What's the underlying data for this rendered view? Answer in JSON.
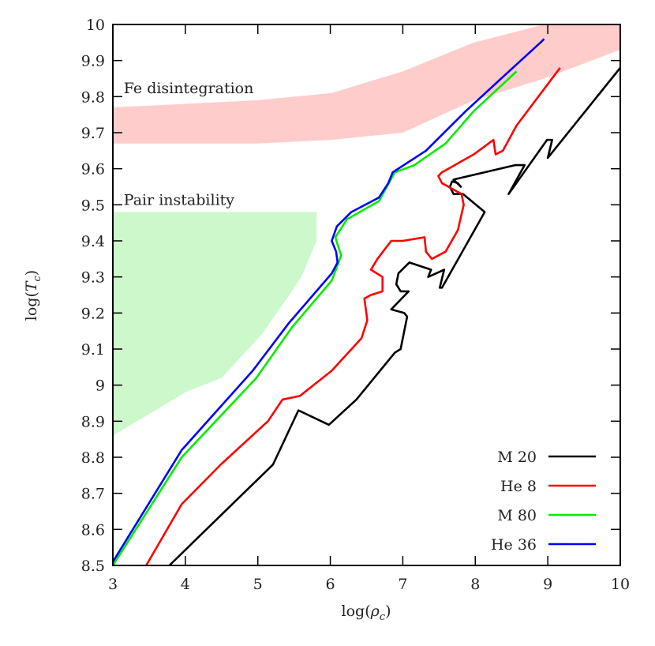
{
  "chart_data": {
    "type": "line",
    "xlabel": {
      "pre": "log(",
      "sym": "ρ",
      "sub": "c",
      "post": ")"
    },
    "ylabel": {
      "pre": "log(",
      "sym": "T",
      "sub": "c",
      "post": ")"
    },
    "xlim": [
      3,
      10
    ],
    "ylim": [
      8.5,
      10
    ],
    "xticks": [
      "3",
      "4",
      "5",
      "6",
      "7",
      "8",
      "9",
      "10"
    ],
    "yticks": [
      "8.5",
      "8.6",
      "8.7",
      "8.8",
      "8.9",
      "9",
      "9.1",
      "9.2",
      "9.3",
      "9.4",
      "9.5",
      "9.6",
      "9.7",
      "9.8",
      "9.9",
      "10"
    ],
    "grid": false,
    "legend_position": "bottom-right",
    "regions": [
      {
        "label": "Fe disintegration",
        "color": "#ffcccc",
        "polygon": [
          [
            3,
            9.77
          ],
          [
            4,
            9.78
          ],
          [
            5,
            9.79
          ],
          [
            6.02,
            9.81
          ],
          [
            7,
            9.87
          ],
          [
            7.98,
            9.95
          ],
          [
            8.95,
            10
          ],
          [
            10,
            10
          ],
          [
            10,
            9.93
          ],
          [
            8.95,
            9.85
          ],
          [
            7.98,
            9.79
          ],
          [
            7,
            9.7
          ],
          [
            6.02,
            9.68
          ],
          [
            4.98,
            9.67
          ],
          [
            3,
            9.67
          ]
        ],
        "label_at": [
          3.15,
          9.81
        ]
      },
      {
        "label": "Pair instability",
        "color": "#ccf8cc",
        "polygon": [
          [
            3,
            9.48
          ],
          [
            5.81,
            9.48
          ],
          [
            5.81,
            9.4
          ],
          [
            5.6,
            9.3
          ],
          [
            5.4,
            9.24
          ],
          [
            5.05,
            9.14
          ],
          [
            4.5,
            9.02
          ],
          [
            4,
            8.98
          ],
          [
            3,
            8.86
          ]
        ],
        "label_at": [
          3.15,
          9.5
        ]
      }
    ],
    "series": [
      {
        "name": "M 20",
        "color": "#000000",
        "points": [
          [
            3.78,
            8.5
          ],
          [
            5.21,
            8.78
          ],
          [
            5.56,
            8.93
          ],
          [
            5.98,
            8.89
          ],
          [
            6.36,
            8.96
          ],
          [
            6.89,
            9.09
          ],
          [
            6.97,
            9.1
          ],
          [
            7.06,
            9.19
          ],
          [
            7.02,
            9.2
          ],
          [
            6.84,
            9.21
          ],
          [
            7.08,
            9.26
          ],
          [
            6.97,
            9.26
          ],
          [
            6.91,
            9.28
          ],
          [
            6.94,
            9.31
          ],
          [
            7.09,
            9.34
          ],
          [
            7.39,
            9.32
          ],
          [
            7.35,
            9.3
          ],
          [
            7.57,
            9.32
          ],
          [
            7.51,
            9.27
          ],
          [
            7.54,
            9.27
          ],
          [
            8.13,
            9.48
          ],
          [
            7.83,
            9.53
          ],
          [
            7.7,
            9.53
          ],
          [
            7.65,
            9.55
          ],
          [
            7.68,
            9.565
          ],
          [
            7.76,
            9.56
          ],
          [
            7.8,
            9.55
          ],
          [
            7.7,
            9.57
          ],
          [
            8.55,
            9.61
          ],
          [
            8.68,
            9.61
          ],
          [
            8.46,
            9.53
          ],
          [
            8.99,
            9.68
          ],
          [
            9.06,
            9.68
          ],
          [
            9.0,
            9.63
          ],
          [
            10,
            9.88
          ]
        ]
      },
      {
        "name": "He 8",
        "color": "#ff0000",
        "points": [
          [
            3.46,
            8.5
          ],
          [
            3.95,
            8.67
          ],
          [
            4.49,
            8.78
          ],
          [
            5.14,
            8.9
          ],
          [
            5.34,
            8.96
          ],
          [
            5.58,
            8.97
          ],
          [
            6.02,
            9.04
          ],
          [
            6.43,
            9.13
          ],
          [
            6.51,
            9.18
          ],
          [
            6.47,
            9.24
          ],
          [
            6.56,
            9.25
          ],
          [
            6.72,
            9.26
          ],
          [
            6.72,
            9.3
          ],
          [
            6.56,
            9.32
          ],
          [
            6.65,
            9.35
          ],
          [
            6.84,
            9.4
          ],
          [
            7.0,
            9.4
          ],
          [
            7.3,
            9.41
          ],
          [
            7.32,
            9.37
          ],
          [
            7.4,
            9.35
          ],
          [
            7.59,
            9.37
          ],
          [
            7.76,
            9.43
          ],
          [
            7.84,
            9.5
          ],
          [
            7.81,
            9.53
          ],
          [
            7.54,
            9.56
          ],
          [
            7.49,
            9.58
          ],
          [
            7.54,
            9.59
          ],
          [
            7.98,
            9.64
          ],
          [
            8.25,
            9.68
          ],
          [
            8.28,
            9.64
          ],
          [
            8.38,
            9.65
          ],
          [
            8.57,
            9.72
          ],
          [
            9.17,
            9.88
          ]
        ]
      },
      {
        "name": "M 80",
        "color": "#00ee00",
        "points": [
          [
            3,
            8.5
          ],
          [
            3.95,
            8.8
          ],
          [
            4.98,
            9.02
          ],
          [
            5.47,
            9.16
          ],
          [
            6.02,
            9.29
          ],
          [
            6.15,
            9.36
          ],
          [
            6.1,
            9.39
          ],
          [
            6.07,
            9.41
          ],
          [
            6.23,
            9.46
          ],
          [
            6.67,
            9.51
          ],
          [
            6.89,
            9.59
          ],
          [
            7.16,
            9.61
          ],
          [
            7.59,
            9.67
          ],
          [
            7.98,
            9.76
          ],
          [
            8.57,
            9.87
          ]
        ]
      },
      {
        "name": "He 36",
        "color": "#0000ff",
        "points": [
          [
            3,
            8.51
          ],
          [
            3.95,
            8.82
          ],
          [
            4.93,
            9.04
          ],
          [
            5.42,
            9.17
          ],
          [
            6.02,
            9.31
          ],
          [
            6.1,
            9.34
          ],
          [
            6.08,
            9.37
          ],
          [
            6.02,
            9.4
          ],
          [
            6.09,
            9.44
          ],
          [
            6.29,
            9.48
          ],
          [
            6.67,
            9.52
          ],
          [
            6.8,
            9.56
          ],
          [
            6.86,
            9.59
          ],
          [
            7.32,
            9.65
          ],
          [
            7.87,
            9.76
          ],
          [
            8.41,
            9.86
          ],
          [
            8.9,
            9.95
          ],
          [
            8.95,
            9.96
          ]
        ]
      }
    ]
  }
}
